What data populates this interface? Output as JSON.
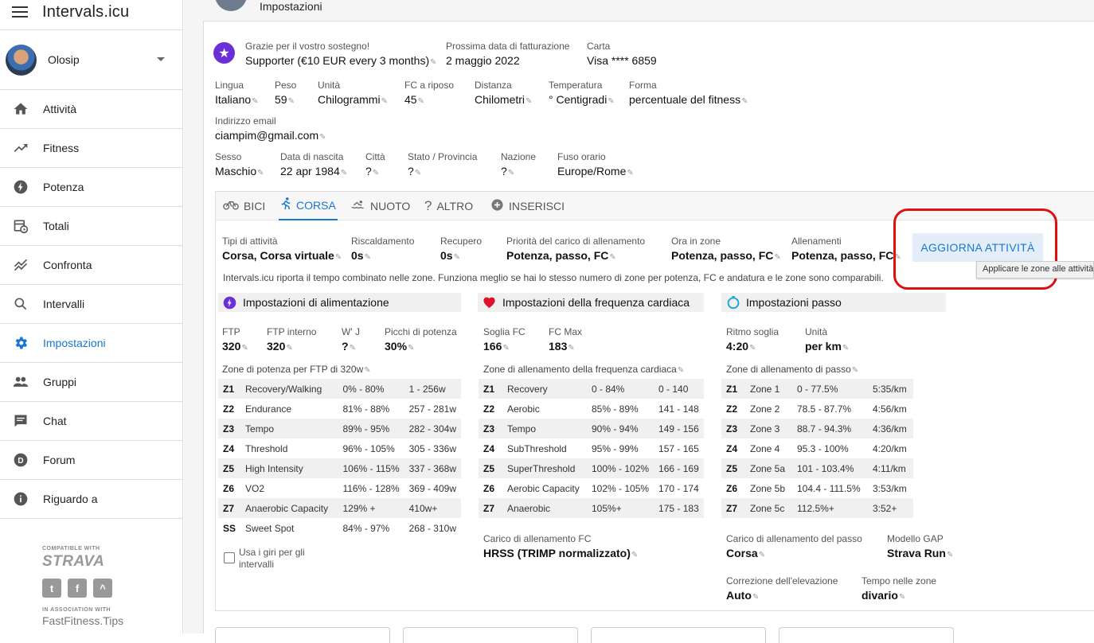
{
  "app": {
    "title": "Intervals.icu"
  },
  "user": {
    "name": "Olosip"
  },
  "nav": [
    {
      "label": "Attività",
      "icon": "home-icon"
    },
    {
      "label": "Fitness",
      "icon": "trending-up-icon"
    },
    {
      "label": "Potenza",
      "icon": "bolt-icon"
    },
    {
      "label": "Totali",
      "icon": "calendar-clock-icon"
    },
    {
      "label": "Confronta",
      "icon": "compare-icon"
    },
    {
      "label": "Intervalli",
      "icon": "search-icon"
    },
    {
      "label": "Impostazioni",
      "icon": "gear-icon",
      "active": true
    },
    {
      "label": "Gruppi",
      "icon": "people-icon"
    },
    {
      "label": "Chat",
      "icon": "chat-icon"
    },
    {
      "label": "Forum",
      "icon": "discourse-icon"
    },
    {
      "label": "Riguardo a",
      "icon": "info-icon"
    }
  ],
  "partner": {
    "compatible": "COMPATIBLE WITH",
    "strava": "STRAVA",
    "association": "IN ASSOCIATION WITH",
    "fastfitness": "FastFitness.Tips"
  },
  "page": {
    "heading": "Impostazioni"
  },
  "billing": {
    "thanks": "Grazie per il vostro sostegno!",
    "plan": "Supporter (€10 EUR every 3 months)",
    "next_label": "Prossima data di fatturazione",
    "next_value": "2 maggio 2022",
    "card_label": "Carta",
    "card_value": "Visa **** 6859"
  },
  "profile": {
    "lingua": {
      "k": "Lingua",
      "v": "Italiano"
    },
    "peso": {
      "k": "Peso",
      "v": "59"
    },
    "unita": {
      "k": "Unità",
      "v": "Chilogrammi"
    },
    "fc_riposo": {
      "k": "FC a riposo",
      "v": "45"
    },
    "distanza": {
      "k": "Distanza",
      "v": "Chilometri"
    },
    "temperatura": {
      "k": "Temperatura",
      "v": "° Centigradi"
    },
    "forma": {
      "k": "Forma",
      "v": "percentuale del fitness"
    },
    "email": {
      "k": "Indirizzo email",
      "v": "ciampim@gmail.com"
    },
    "sesso": {
      "k": "Sesso",
      "v": "Maschio"
    },
    "nascita": {
      "k": "Data di nascita",
      "v": "22 apr 1984"
    },
    "citta": {
      "k": "Città",
      "v": "?"
    },
    "stato": {
      "k": "Stato / Provincia",
      "v": "?"
    },
    "nazione": {
      "k": "Nazione",
      "v": "?"
    },
    "fuso": {
      "k": "Fuso orario",
      "v": "Europe/Rome"
    }
  },
  "tabs": [
    {
      "label": "BICI",
      "icon": "bike-icon"
    },
    {
      "label": "CORSA",
      "icon": "run-icon",
      "active": true
    },
    {
      "label": "NUOTO",
      "icon": "swim-icon"
    },
    {
      "label": "ALTRO",
      "icon": "question-icon"
    },
    {
      "label": "INSERISCI",
      "icon": "add-circle-icon"
    }
  ],
  "sport": {
    "tipi": {
      "k": "Tipi di attività",
      "v": "Corsa, Corsa virtuale"
    },
    "riscaldamento": {
      "k": "Riscaldamento",
      "v": "0s"
    },
    "recupero": {
      "k": "Recupero",
      "v": "0s"
    },
    "priorita": {
      "k": "Priorità del carico di allenamento",
      "v": "Potenza, passo, FC"
    },
    "ora_zone": {
      "k": "Ora in zone",
      "v": "Potenza, passo, FC"
    },
    "allenamenti": {
      "k": "Allenamenti",
      "v": "Potenza, passo, FC"
    },
    "update_button": "AGGIORNA ATTIVITÀ",
    "tooltip": "Applicare le zone alle attività",
    "hint": "Intervals.icu riporta il tempo combinato nelle zone. Funziona meglio se hai lo stesso numero di zone per potenza, FC e andatura e le zone sono comparabili."
  },
  "power": {
    "title": "Impostazioni di alimentazione",
    "ftp": {
      "k": "FTP",
      "v": "320"
    },
    "ftp_interno": {
      "k": "FTP interno",
      "v": "320"
    },
    "wj": {
      "k": "W' J",
      "v": "?"
    },
    "picchi": {
      "k": "Picchi di potenza",
      "v": "30%"
    },
    "zones_caption": "Zone di potenza per FTP di 320w",
    "zones": [
      [
        "Z1",
        "Recovery/Walking",
        "0% - 80%",
        "1 - 256w"
      ],
      [
        "Z2",
        "Endurance",
        "81% - 88%",
        "257 - 281w"
      ],
      [
        "Z3",
        "Tempo",
        "89% - 95%",
        "282 - 304w"
      ],
      [
        "Z4",
        "Threshold",
        "96% - 105%",
        "305 - 336w"
      ],
      [
        "Z5",
        "High Intensity",
        "106% - 115%",
        "337 - 368w"
      ],
      [
        "Z6",
        "VO2",
        "116% - 128%",
        "369 - 409w"
      ],
      [
        "Z7",
        "Anaerobic Capacity",
        "129% +",
        "410w+"
      ],
      [
        "SS",
        "Sweet Spot",
        "84% - 97%",
        "268 - 310w"
      ]
    ],
    "laps_label": "Usa i giri per gli intervalli"
  },
  "hr": {
    "title": "Impostazioni della frequenza cardiaca",
    "soglia": {
      "k": "Soglia FC",
      "v": "166"
    },
    "max": {
      "k": "FC Max",
      "v": "183"
    },
    "zones_caption": "Zone di allenamento della frequenza cardiaca",
    "zones": [
      [
        "Z1",
        "Recovery",
        "0 - 84%",
        "0 - 140"
      ],
      [
        "Z2",
        "Aerobic",
        "85% - 89%",
        "141 - 148"
      ],
      [
        "Z3",
        "Tempo",
        "90% - 94%",
        "149 - 156"
      ],
      [
        "Z4",
        "SubThreshold",
        "95% - 99%",
        "157 - 165"
      ],
      [
        "Z5",
        "SuperThreshold",
        "100% - 102%",
        "166 - 169"
      ],
      [
        "Z6",
        "Aerobic Capacity",
        "102% - 105%",
        "170 - 174"
      ],
      [
        "Z7",
        "Anaerobic",
        "105%+",
        "175 - 183"
      ]
    ],
    "load": {
      "k": "Carico di allenamento FC",
      "v": "HRSS (TRIMP normalizzato)"
    }
  },
  "pace": {
    "title": "Impostazioni passo",
    "ritmo": {
      "k": "Ritmo soglia",
      "v": "4:20"
    },
    "unita": {
      "k": "Unità",
      "v": "per km"
    },
    "zones_caption": "Zone di allenamento di passo",
    "zones": [
      [
        "Z1",
        "Zone 1",
        "0 - 77.5%",
        "5:35/km"
      ],
      [
        "Z2",
        "Zone 2",
        "78.5 - 87.7%",
        "4:56/km"
      ],
      [
        "Z3",
        "Zone 3",
        "88.7 - 94.3%",
        "4:36/km"
      ],
      [
        "Z4",
        "Zone 4",
        "95.3 - 100%",
        "4:20/km"
      ],
      [
        "Z5",
        "Zone 5a",
        "101 - 103.4%",
        "4:11/km"
      ],
      [
        "Z6",
        "Zone 5b",
        "104.4 - 111.5%",
        "3:53/km"
      ],
      [
        "Z7",
        "Zone 5c",
        "112.5%+",
        "3:52+"
      ]
    ],
    "load": {
      "k": "Carico di allenamento del passo",
      "v": "Corsa"
    },
    "gap": {
      "k": "Modello GAP",
      "v": "Strava Run"
    },
    "elev": {
      "k": "Correzione dell'elevazione",
      "v": "Auto"
    },
    "tempo_zone": {
      "k": "Tempo nelle zone",
      "v": "divario"
    }
  },
  "colors": {
    "accent": "#1976d2",
    "highlight": "#e01010",
    "supporter": "#6a2fd6"
  }
}
